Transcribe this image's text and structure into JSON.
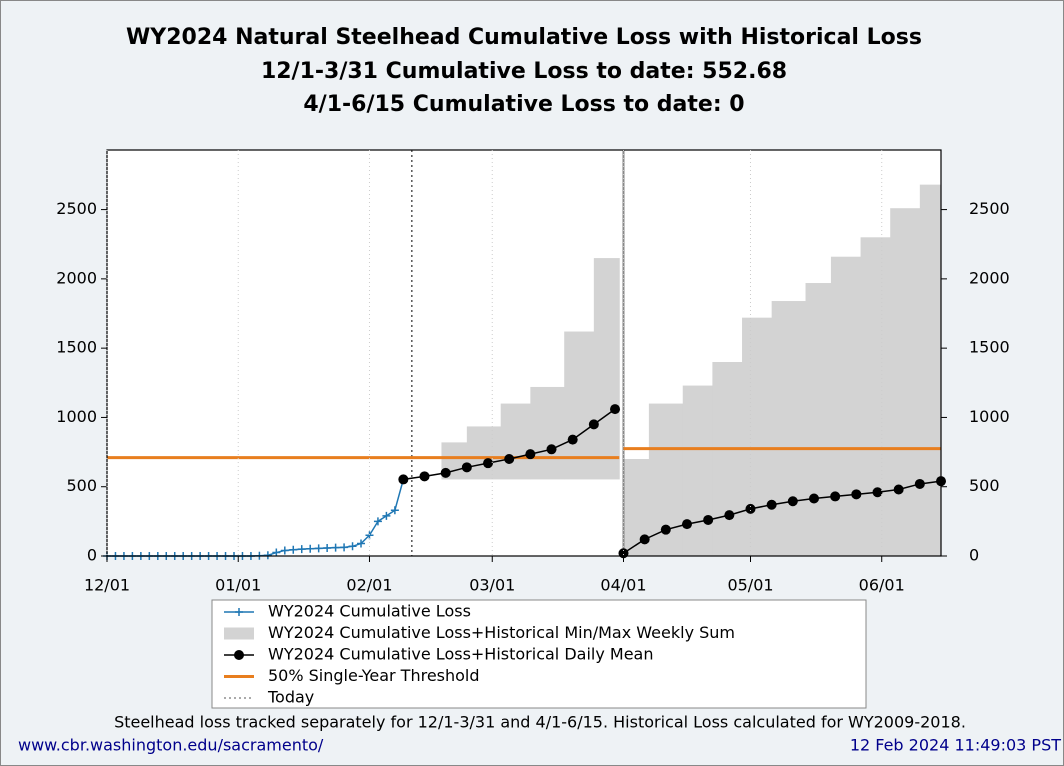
{
  "chart_data": {
    "type": "line",
    "title": [
      "WY2024 Natural Steelhead Cumulative Loss with Historical Loss",
      "12/1-3/31 Cumulative Loss to date: 552.68",
      "4/1-6/15 Cumulative Loss to date: 0"
    ],
    "xlim": [
      0,
      197
    ],
    "xticks": [
      {
        "value": 0,
        "label": "12/01"
      },
      {
        "value": 31,
        "label": "01/01"
      },
      {
        "value": 62,
        "label": "02/01"
      },
      {
        "value": 91,
        "label": "03/01"
      },
      {
        "value": 122,
        "label": "04/01"
      },
      {
        "value": 152,
        "label": "05/01"
      },
      {
        "value": 183,
        "label": "06/01"
      }
    ],
    "ylim": [
      0,
      2930
    ],
    "yticks": [
      0,
      500,
      1000,
      1500,
      2000,
      2500
    ],
    "series": [
      {
        "name": "WY2024 Cumulative Loss",
        "color": "#1f77b4",
        "x": [
          0,
          2,
          4,
          6,
          8,
          10,
          12,
          14,
          16,
          18,
          20,
          22,
          24,
          26,
          28,
          30,
          32,
          34,
          36,
          38,
          40,
          42,
          44,
          46,
          48,
          50,
          52,
          54,
          56,
          58,
          60,
          62,
          64,
          66,
          68,
          70
        ],
        "values": [
          0,
          0,
          0,
          0,
          0,
          0,
          0,
          0,
          0,
          0,
          0,
          0,
          0,
          0,
          0,
          0,
          0,
          0,
          2,
          5,
          25,
          40,
          45,
          50,
          52,
          55,
          58,
          60,
          62,
          70,
          90,
          150,
          250,
          290,
          330,
          552.68
        ]
      },
      {
        "name": "WY2024 Cumulative Loss+Historical Min/Max Weekly Sum",
        "color": "#d3d3d3",
        "x0": [
          79,
          85,
          93,
          100,
          108,
          115,
          122,
          128,
          136,
          143,
          150,
          157,
          165,
          171,
          178,
          185,
          192
        ],
        "x1": [
          85,
          93,
          100,
          108,
          115,
          121,
          128,
          136,
          143,
          150,
          157,
          165,
          171,
          178,
          185,
          192,
          197
        ],
        "low": [
          552.68,
          552.68,
          552.68,
          552.68,
          552.68,
          552.68,
          0,
          0,
          0,
          0,
          0,
          0,
          0,
          0,
          0,
          0,
          0
        ],
        "high": [
          820,
          935,
          1100,
          1220,
          1620,
          2150,
          700,
          1100,
          1230,
          1400,
          1720,
          1840,
          1970,
          2160,
          2300,
          2510,
          2680
        ]
      },
      {
        "name": "WY2024 Cumulative Loss+Historical Daily Mean",
        "color": "#000000",
        "x": [
          70,
          75,
          80,
          85,
          90,
          95,
          100,
          105,
          110,
          115,
          120,
          121,
          122,
          127,
          132,
          137,
          142,
          147,
          152,
          157,
          162,
          167,
          172,
          177,
          182,
          187,
          192,
          197
        ],
        "values": [
          552.68,
          575,
          600,
          640,
          670,
          700,
          735,
          770,
          840,
          950,
          1060,
          null,
          20,
          120,
          190,
          230,
          260,
          295,
          340,
          370,
          395,
          415,
          430,
          445,
          460,
          480,
          520,
          540
        ]
      },
      {
        "name": "50% Single-Year Threshold",
        "color": "#e87e1e",
        "x0": [
          0,
          122
        ],
        "x1": [
          121,
          197
        ],
        "values": [
          710,
          775
        ]
      },
      {
        "name": "Today",
        "color": "#555555",
        "x": [
          72
        ]
      }
    ],
    "footnote": "Steelhead loss tracked separately for 12/1-3/31 and 4/1-6/15. Historical Loss calculated for WY2009-2018.",
    "source": "www.cbr.washington.edu/sacramento/",
    "timestamp": "12 Feb 2024 11:49:03 PST"
  }
}
